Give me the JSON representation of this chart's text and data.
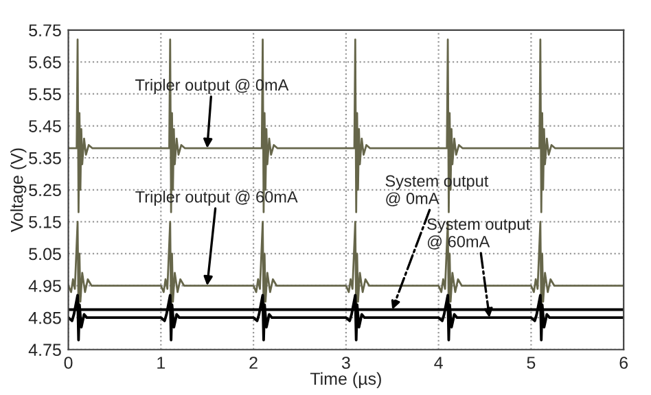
{
  "chart_data": {
    "type": "line",
    "xlabel": "Time (µs)",
    "ylabel": "Voltage (V)",
    "xlim": [
      0,
      6
    ],
    "xticks": [
      0,
      1,
      2,
      3,
      4,
      5,
      6
    ],
    "ylim": [
      4.75,
      5.75
    ],
    "yticks": [
      {
        "value": 4.75,
        "label": "4.75"
      },
      {
        "value": 4.85,
        "label": "4.85"
      },
      {
        "value": 4.95,
        "label": "4.95"
      },
      {
        "value": 5.05,
        "label": "5.05"
      },
      {
        "value": 5.15,
        "label": "5.15"
      },
      {
        "value": 5.25,
        "label": "5.25"
      },
      {
        "value": 5.35,
        "label": "5.35"
      },
      {
        "value": 5.45,
        "label": "5.45"
      },
      {
        "value": 5.55,
        "label": "5.55"
      },
      {
        "value": 5.65,
        "label": "5.65"
      },
      {
        "value": 5.75,
        "label": "5.75"
      }
    ],
    "grid": true,
    "marker": "none",
    "line_style": "solid",
    "series": [
      {
        "color": "#66664a",
        "x": [
          0,
          0.09,
          0.1,
          0.11,
          0.12,
          0.13,
          0.14,
          0.15,
          0.17,
          0.19,
          0.22,
          0.26,
          1.09,
          1.1,
          1.11,
          1.12,
          1.13,
          1.14,
          1.15,
          1.17,
          1.19,
          1.22,
          1.26,
          2.09,
          2.1,
          2.11,
          2.12,
          2.13,
          2.14,
          2.15,
          2.17,
          2.19,
          2.22,
          2.26,
          3.09,
          3.1,
          3.11,
          3.12,
          3.13,
          3.14,
          3.15,
          3.17,
          3.19,
          3.22,
          3.26,
          4.09,
          4.1,
          4.11,
          4.12,
          4.13,
          4.14,
          4.15,
          4.17,
          4.19,
          4.22,
          4.26,
          5.09,
          5.1,
          5.11,
          5.12,
          5.13,
          5.14,
          5.15,
          5.17,
          5.19,
          5.22,
          5.26,
          6
        ],
        "values": [
          5.38,
          5.38,
          5.72,
          5.18,
          5.49,
          5.25,
          5.44,
          5.33,
          5.41,
          5.36,
          5.39,
          5.38,
          5.38,
          5.72,
          5.18,
          5.49,
          5.25,
          5.44,
          5.33,
          5.41,
          5.36,
          5.39,
          5.38,
          5.38,
          5.72,
          5.18,
          5.49,
          5.25,
          5.44,
          5.33,
          5.41,
          5.36,
          5.39,
          5.38,
          5.38,
          5.72,
          5.18,
          5.49,
          5.25,
          5.44,
          5.33,
          5.41,
          5.36,
          5.39,
          5.38,
          5.38,
          5.72,
          5.18,
          5.49,
          5.25,
          5.44,
          5.33,
          5.41,
          5.36,
          5.39,
          5.38,
          5.38,
          5.72,
          5.18,
          5.49,
          5.25,
          5.44,
          5.33,
          5.41,
          5.36,
          5.39,
          5.38,
          5.38
        ]
      },
      {
        "color": "#66664a",
        "x": [
          0,
          0.03,
          0.05,
          0.07,
          0.1,
          0.11,
          0.12,
          0.13,
          0.15,
          0.18,
          0.21,
          0.25,
          1.0,
          1.03,
          1.05,
          1.07,
          1.1,
          1.11,
          1.12,
          1.13,
          1.15,
          1.18,
          1.21,
          1.25,
          2.0,
          2.03,
          2.05,
          2.07,
          2.1,
          2.11,
          2.12,
          2.13,
          2.15,
          2.18,
          2.21,
          2.25,
          3.0,
          3.03,
          3.05,
          3.07,
          3.1,
          3.11,
          3.12,
          3.13,
          3.15,
          3.18,
          3.21,
          3.25,
          4.0,
          4.03,
          4.05,
          4.07,
          4.1,
          4.11,
          4.12,
          4.13,
          4.15,
          4.18,
          4.21,
          4.25,
          5.0,
          5.03,
          5.05,
          5.07,
          5.1,
          5.11,
          5.12,
          5.13,
          5.15,
          5.18,
          5.21,
          5.25,
          6
        ],
        "values": [
          4.95,
          4.93,
          4.97,
          4.94,
          5.15,
          4.86,
          5.05,
          4.9,
          4.99,
          4.93,
          4.97,
          4.95,
          4.95,
          4.93,
          4.97,
          4.94,
          5.15,
          4.86,
          5.05,
          4.9,
          4.99,
          4.93,
          4.97,
          4.95,
          4.95,
          4.93,
          4.97,
          4.94,
          5.15,
          4.86,
          5.05,
          4.9,
          4.99,
          4.93,
          4.97,
          4.95,
          4.95,
          4.93,
          4.97,
          4.94,
          5.15,
          4.86,
          5.05,
          4.9,
          4.99,
          4.93,
          4.97,
          4.95,
          4.95,
          4.93,
          4.97,
          4.94,
          5.15,
          4.86,
          5.05,
          4.9,
          4.99,
          4.93,
          4.97,
          4.95,
          4.95,
          4.93,
          4.97,
          4.94,
          5.15,
          4.86,
          5.05,
          4.9,
          4.99,
          4.93,
          4.97,
          4.95,
          4.95
        ]
      },
      {
        "color": "#000000",
        "x": [
          0,
          6
        ],
        "values": [
          4.875,
          4.875
        ]
      },
      {
        "color": "#000000",
        "x": [
          0,
          0.04,
          0.06,
          0.1,
          0.11,
          0.12,
          0.14,
          0.17,
          0.2,
          1.0,
          1.04,
          1.06,
          1.1,
          1.11,
          1.12,
          1.14,
          1.17,
          1.2,
          2.0,
          2.04,
          2.06,
          2.1,
          2.11,
          2.12,
          2.14,
          2.17,
          2.2,
          3.0,
          3.04,
          3.06,
          3.1,
          3.11,
          3.12,
          3.14,
          3.17,
          3.2,
          4.0,
          4.04,
          4.06,
          4.1,
          4.11,
          4.12,
          4.14,
          4.17,
          4.2,
          5.0,
          5.04,
          5.06,
          5.1,
          5.11,
          5.12,
          5.14,
          5.17,
          5.2,
          6
        ],
        "values": [
          4.85,
          4.84,
          4.86,
          4.92,
          4.78,
          4.89,
          4.82,
          4.86,
          4.85,
          4.85,
          4.84,
          4.86,
          4.92,
          4.78,
          4.89,
          4.82,
          4.86,
          4.85,
          4.85,
          4.84,
          4.86,
          4.92,
          4.78,
          4.89,
          4.82,
          4.86,
          4.85,
          4.85,
          4.84,
          4.86,
          4.92,
          4.78,
          4.89,
          4.82,
          4.86,
          4.85,
          4.85,
          4.84,
          4.86,
          4.92,
          4.78,
          4.89,
          4.82,
          4.86,
          4.85,
          4.85,
          4.84,
          4.86,
          4.92,
          4.78,
          4.89,
          4.82,
          4.86,
          4.85,
          4.85
        ]
      }
    ],
    "annotations": [
      {
        "text": "Tripler output @ 0mA",
        "x": 1.5,
        "y": 5.38
      },
      {
        "text": "Tripler output @ 60mA",
        "x": 1.5,
        "y": 4.95
      },
      {
        "text": "System output\n@ 0mA",
        "x": 3.5,
        "y": 4.875
      },
      {
        "text": "System output\n@ 60mA",
        "x": 4.55,
        "y": 4.85
      }
    ]
  }
}
